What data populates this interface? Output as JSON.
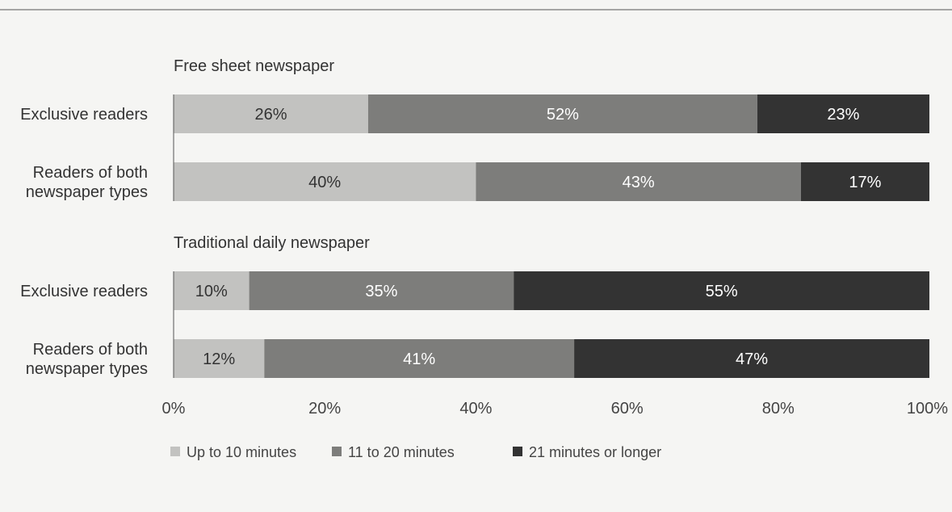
{
  "chart_data": {
    "type": "bar",
    "orientation": "horizontal",
    "stacked": true,
    "xlim": [
      0,
      100
    ],
    "ticks": [
      "0%",
      "20%",
      "40%",
      "60%",
      "80%",
      "100%"
    ],
    "tick_values": [
      0,
      20,
      40,
      60,
      80,
      100
    ],
    "legend_position": "bottom-left",
    "series": [
      {
        "name": "Up to 10 minutes",
        "color": "#c2c2c0"
      },
      {
        "name": "11 to 20 minutes",
        "color": "#7d7d7b"
      },
      {
        "name": "21 minutes or longer",
        "color": "#333333"
      }
    ],
    "groups": [
      {
        "title": "Free sheet newspaper",
        "rows": [
          {
            "label": [
              "Exclusive readers"
            ],
            "values": [
              26,
              52,
              23
            ]
          },
          {
            "label": [
              "Readers of both",
              "newspaper types"
            ],
            "values": [
              40,
              43,
              17
            ]
          }
        ]
      },
      {
        "title": "Traditional daily newspaper",
        "rows": [
          {
            "label": [
              "Exclusive readers"
            ],
            "values": [
              10,
              35,
              55
            ]
          },
          {
            "label": [
              "Readers of both",
              "newspaper types"
            ],
            "values": [
              12,
              41,
              47
            ]
          }
        ]
      }
    ]
  }
}
